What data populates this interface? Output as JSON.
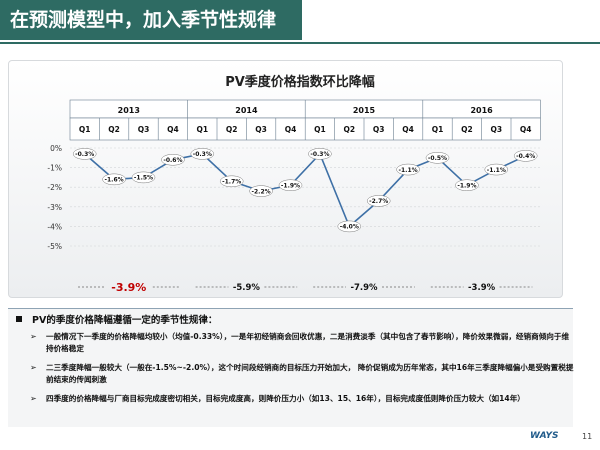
{
  "header": {
    "title": "在预测模型中，加入季节性规律"
  },
  "colors": {
    "title_bg": "#2e6b63",
    "line": "#3e70a6",
    "highlight": "#c00000"
  },
  "chart_data": {
    "type": "line",
    "title": "PV季度价格指数环比降幅",
    "years": [
      "2013",
      "2014",
      "2015",
      "2016"
    ],
    "quarters": [
      "Q1",
      "Q2",
      "Q3",
      "Q4"
    ],
    "categories": [
      "2013 Q1",
      "2013 Q2",
      "2013 Q3",
      "2013 Q4",
      "2014 Q1",
      "2014 Q2",
      "2014 Q3",
      "2014 Q4",
      "2015 Q1",
      "2015 Q2",
      "2015 Q3",
      "2015 Q4",
      "2016 Q1",
      "2016 Q2",
      "2016 Q3",
      "2016 Q4"
    ],
    "values": [
      -0.3,
      -1.6,
      -1.5,
      -0.6,
      -0.3,
      -1.7,
      -2.2,
      -1.9,
      -0.3,
      -4.0,
      -2.7,
      -1.1,
      -0.5,
      -1.9,
      -1.1,
      -0.4
    ],
    "data_labels": [
      "-0.3%",
      "-1.6%",
      "-1.5%",
      "-0.6%",
      "-0.3%",
      "-1.7%",
      "-2.2%",
      "-1.9%",
      "-0.3%",
      "-4.0%",
      "-2.7%",
      "-1.1%",
      "-0.5%",
      "-1.9%",
      "-1.1%",
      "-0.4%"
    ],
    "y_ticks": [
      "0%",
      "-1%",
      "-2%",
      "-3%",
      "-4%",
      "-5%"
    ],
    "ylim": [
      -5,
      0
    ],
    "annual": [
      {
        "year": "2013",
        "label": "-3.9%",
        "highlight": true
      },
      {
        "year": "2014",
        "label": "-5.9%",
        "highlight": false
      },
      {
        "year": "2015",
        "label": "-7.9%",
        "highlight": false
      },
      {
        "year": "2016",
        "label": "-3.9%",
        "highlight": false
      }
    ]
  },
  "notes": {
    "heading": "PV的季度价格降幅遵循一定的季节性规律：",
    "items": [
      "一般情况下一季度的价格降幅均较小（均值-0.33%），一是年初经销商会回收优惠，二是消费淡季（其中包含了春节影响），降价效果微弱，经销商倾向于维持价格稳定",
      "二三季度降幅一般较大（一般在-1.5%~-2.0%），这个时间段经销商的目标压力开始加大， 降价促销成为历年常态，其中16年三季度降幅偏小是受购置税提前结束的传闻刺激",
      "四季度的价格降幅与厂商目标完成度密切相关，目标完成度高，则降价压力小（如13、15、16年），目标完成度低则降价压力较大（如14年）"
    ]
  },
  "footer": {
    "logo": "WAYS",
    "page": "11"
  }
}
